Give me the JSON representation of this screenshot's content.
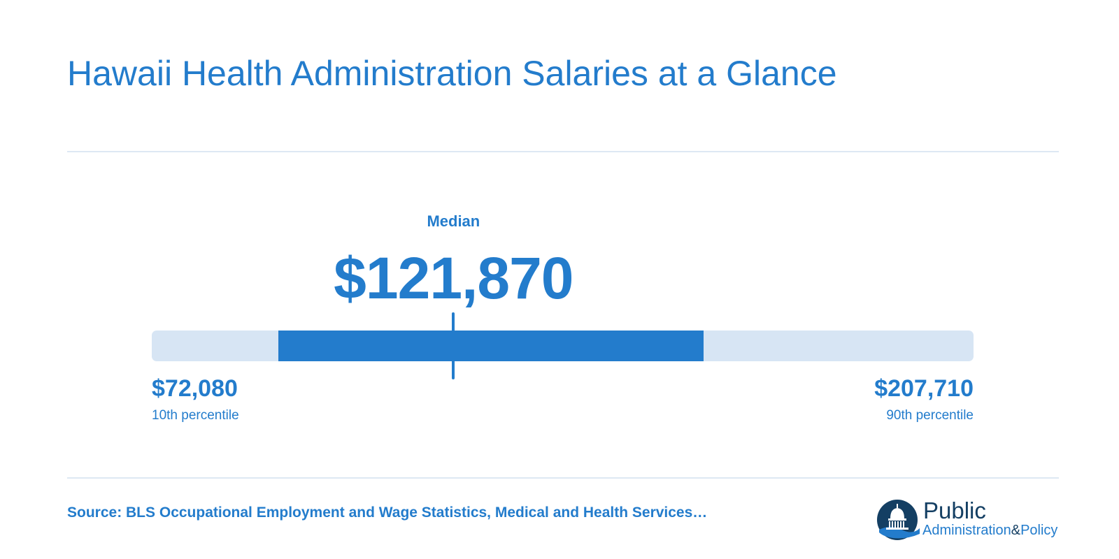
{
  "header": {
    "title": "Hawaii Health Administration Salaries at a Glance"
  },
  "chart_data": {
    "type": "range",
    "title": "Hawaii Health Administration Salaries at a Glance",
    "scale": {
      "min": 72080,
      "max": 207710
    },
    "percentiles": {
      "p10": {
        "value": 72080,
        "display": "$72,080",
        "label": "10th percentile"
      },
      "p25": {
        "value": 93000
      },
      "median": {
        "value": 121870,
        "display": "$121,870",
        "label": "Median"
      },
      "p75": {
        "value": 163100
      },
      "p90": {
        "value": 207710,
        "display": "$207,710",
        "label": "90th percentile"
      }
    }
  },
  "footer": {
    "source": "Source: BLS Occupational Employment and Wage Statistics, Medical and Health Services…",
    "logo": {
      "icon": "capitol-dome-icon",
      "word1": "Public",
      "word2": "Administration",
      "amp": "&",
      "word3": "Policy"
    }
  },
  "colors": {
    "accent": "#237ccc",
    "track": "#d7e5f4",
    "divider": "#dde8f3",
    "logo_dark": "#143f63"
  }
}
